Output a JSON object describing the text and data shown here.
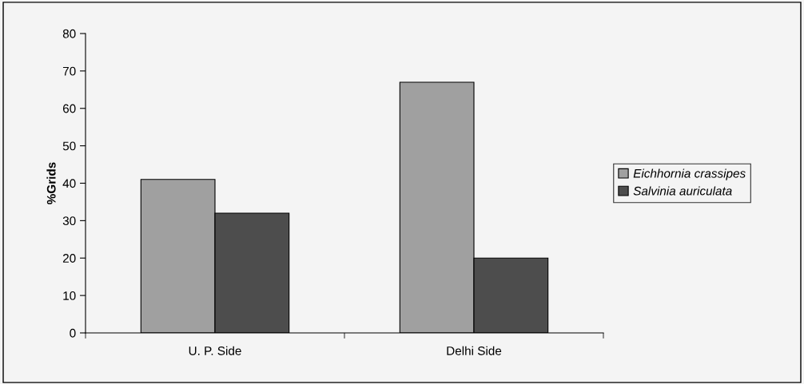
{
  "chart_data": {
    "type": "bar",
    "ylabel": "%Grids",
    "categories": [
      "U. P. Side",
      "Delhi Side"
    ],
    "series": [
      {
        "name": "Eichhornia crassipes",
        "color": "#a0a0a0",
        "values": [
          41,
          67
        ]
      },
      {
        "name": "Salvinia auriculata",
        "color": "#4d4d4d",
        "values": [
          32,
          20
        ]
      }
    ],
    "ylim": [
      0,
      80
    ],
    "yticks": [
      0,
      10,
      20,
      30,
      40,
      50,
      60,
      70,
      80
    ],
    "grid": false,
    "legend": "right"
  }
}
